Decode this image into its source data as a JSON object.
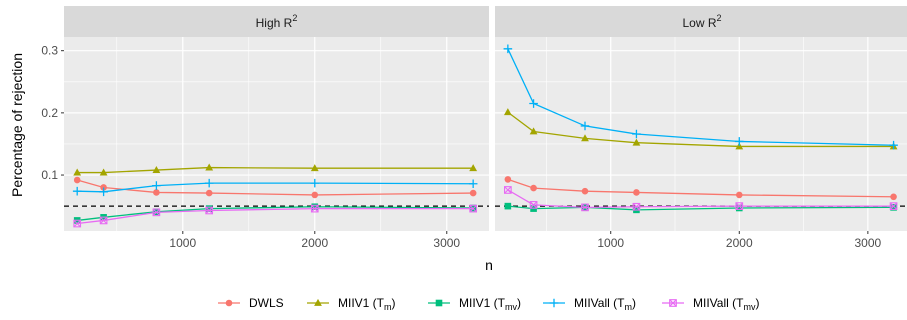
{
  "chart_data": {
    "type": "line",
    "xlabel": "n",
    "ylabel": "Percentage of rejection",
    "x": [
      200,
      400,
      800,
      1200,
      2000,
      3200
    ],
    "xticks": [
      1000,
      2000,
      3000
    ],
    "xlim": [
      100,
      3320
    ],
    "yticks": [
      0.1,
      0.2,
      0.3
    ],
    "ylim": [
      0.01,
      0.322
    ],
    "reference_line": {
      "y": 0.05,
      "style": "dashed"
    },
    "legend_position": "bottom",
    "panels": [
      {
        "title": "High R",
        "title_sup": "2",
        "series": [
          {
            "name": "DWLS",
            "values": [
              0.092,
              0.08,
              0.072,
              0.071,
              0.068,
              0.071
            ]
          },
          {
            "name": "MIIV1 (T",
            "sub": "m",
            "values": [
              0.104,
              0.104,
              0.108,
              0.112,
              0.111,
              0.111
            ]
          },
          {
            "name": "MIIV1 (T",
            "sub": "mv",
            "values": [
              0.027,
              0.032,
              0.041,
              0.046,
              0.049,
              0.047
            ]
          },
          {
            "name": "MIIVall (T",
            "sub": "m",
            "values": [
              0.074,
              0.073,
              0.083,
              0.087,
              0.087,
              0.086
            ]
          },
          {
            "name": "MIIVall (T",
            "sub": "mv",
            "values": [
              0.022,
              0.027,
              0.04,
              0.043,
              0.046,
              0.046
            ]
          }
        ]
      },
      {
        "title": "Low R",
        "title_sup": "2",
        "series": [
          {
            "name": "DWLS",
            "values": [
              0.093,
              0.079,
              0.074,
              0.072,
              0.068,
              0.065
            ]
          },
          {
            "name": "MIIV1 (T",
            "sub": "m",
            "values": [
              0.201,
              0.17,
              0.159,
              0.152,
              0.146,
              0.146
            ]
          },
          {
            "name": "MIIV1 (T",
            "sub": "mv",
            "values": [
              0.05,
              0.046,
              0.048,
              0.044,
              0.047,
              0.048
            ]
          },
          {
            "name": "MIIVall (T",
            "sub": "m",
            "values": [
              0.303,
              0.215,
              0.179,
              0.166,
              0.154,
              0.148
            ]
          },
          {
            "name": "MIIVall (T",
            "sub": "mv",
            "values": [
              0.076,
              0.052,
              0.048,
              0.049,
              0.05,
              0.05
            ]
          }
        ]
      }
    ]
  },
  "colors": {
    "DWLS": "#F8766D",
    "MIIV1_Tm": "#A3A500",
    "MIIV1_Tmv": "#00BF7D",
    "MIIVall_Tm": "#00B0F6",
    "MIIVall_Tmv": "#E76BF3",
    "panel_background": "#EBEBEB",
    "strip_background": "#D9D9D9",
    "grid": "#FFFFFF"
  },
  "markers": [
    "circle",
    "triangle",
    "square",
    "plus",
    "square-cross"
  ]
}
